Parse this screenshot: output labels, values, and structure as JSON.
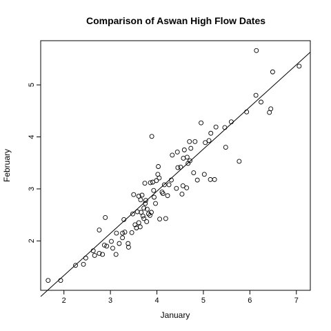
{
  "chart_data": {
    "type": "scatter",
    "title": "Comparison of Aswan High Flow Dates",
    "xlabel": "January",
    "ylabel": "February",
    "xlim": [
      1.5,
      7.3
    ],
    "ylim": [
      1.05,
      5.85
    ],
    "x_ticks": [
      2,
      3,
      4,
      5,
      6,
      7
    ],
    "y_ticks": [
      2,
      3,
      4,
      5
    ],
    "grid": false,
    "legend": "none",
    "fit_line": {
      "x": [
        1.5,
        7.3
      ],
      "y": [
        0.93,
        5.63
      ]
    },
    "points": [
      {
        "x": 1.66,
        "y": 1.24
      },
      {
        "x": 1.93,
        "y": 1.24
      },
      {
        "x": 2.25,
        "y": 1.53
      },
      {
        "x": 2.42,
        "y": 1.55
      },
      {
        "x": 2.47,
        "y": 1.67
      },
      {
        "x": 2.63,
        "y": 1.81
      },
      {
        "x": 2.66,
        "y": 1.72
      },
      {
        "x": 2.76,
        "y": 1.76
      },
      {
        "x": 2.76,
        "y": 2.21
      },
      {
        "x": 2.83,
        "y": 1.74
      },
      {
        "x": 2.87,
        "y": 1.92
      },
      {
        "x": 2.89,
        "y": 2.45
      },
      {
        "x": 2.92,
        "y": 1.9
      },
      {
        "x": 3.02,
        "y": 1.99
      },
      {
        "x": 3.05,
        "y": 1.86
      },
      {
        "x": 3.12,
        "y": 1.74
      },
      {
        "x": 3.13,
        "y": 2.15
      },
      {
        "x": 3.19,
        "y": 1.95
      },
      {
        "x": 3.26,
        "y": 2.06
      },
      {
        "x": 3.26,
        "y": 2.15
      },
      {
        "x": 3.29,
        "y": 2.41
      },
      {
        "x": 3.31,
        "y": 2.17
      },
      {
        "x": 3.38,
        "y": 1.95
      },
      {
        "x": 3.39,
        "y": 1.88
      },
      {
        "x": 3.46,
        "y": 2.16
      },
      {
        "x": 3.48,
        "y": 2.52
      },
      {
        "x": 3.5,
        "y": 2.89
      },
      {
        "x": 3.53,
        "y": 2.31
      },
      {
        "x": 3.56,
        "y": 2.25
      },
      {
        "x": 3.58,
        "y": 2.56
      },
      {
        "x": 3.61,
        "y": 2.35
      },
      {
        "x": 3.61,
        "y": 2.86
      },
      {
        "x": 3.64,
        "y": 2.27
      },
      {
        "x": 3.65,
        "y": 2.79
      },
      {
        "x": 3.66,
        "y": 2.55
      },
      {
        "x": 3.68,
        "y": 2.88
      },
      {
        "x": 3.7,
        "y": 2.48
      },
      {
        "x": 3.72,
        "y": 2.63
      },
      {
        "x": 3.72,
        "y": 2.43
      },
      {
        "x": 3.74,
        "y": 3.11
      },
      {
        "x": 3.75,
        "y": 2.72
      },
      {
        "x": 3.76,
        "y": 2.78
      },
      {
        "x": 3.78,
        "y": 2.37
      },
      {
        "x": 3.79,
        "y": 2.61
      },
      {
        "x": 3.82,
        "y": 2.52
      },
      {
        "x": 3.85,
        "y": 2.49
      },
      {
        "x": 3.86,
        "y": 3.12
      },
      {
        "x": 3.88,
        "y": 2.55
      },
      {
        "x": 3.89,
        "y": 4.01
      },
      {
        "x": 3.91,
        "y": 3.13
      },
      {
        "x": 3.93,
        "y": 2.97
      },
      {
        "x": 3.94,
        "y": 2.84
      },
      {
        "x": 3.97,
        "y": 2.72
      },
      {
        "x": 3.99,
        "y": 3.16
      },
      {
        "x": 4.02,
        "y": 3.28
      },
      {
        "x": 4.03,
        "y": 3.43
      },
      {
        "x": 4.05,
        "y": 3.21
      },
      {
        "x": 4.06,
        "y": 2.42
      },
      {
        "x": 4.11,
        "y": 2.94
      },
      {
        "x": 4.13,
        "y": 2.91
      },
      {
        "x": 4.16,
        "y": 3.08
      },
      {
        "x": 4.19,
        "y": 2.43
      },
      {
        "x": 4.23,
        "y": 2.87
      },
      {
        "x": 4.26,
        "y": 3.08
      },
      {
        "x": 4.31,
        "y": 3.17
      },
      {
        "x": 4.33,
        "y": 3.65
      },
      {
        "x": 4.42,
        "y": 3.01
      },
      {
        "x": 4.44,
        "y": 3.71
      },
      {
        "x": 4.45,
        "y": 3.41
      },
      {
        "x": 4.51,
        "y": 3.42
      },
      {
        "x": 4.54,
        "y": 2.9
      },
      {
        "x": 4.56,
        "y": 3.06
      },
      {
        "x": 4.57,
        "y": 3.59
      },
      {
        "x": 4.59,
        "y": 3.75
      },
      {
        "x": 4.64,
        "y": 3.02
      },
      {
        "x": 4.65,
        "y": 3.61
      },
      {
        "x": 4.67,
        "y": 3.49
      },
      {
        "x": 4.7,
        "y": 3.91
      },
      {
        "x": 4.71,
        "y": 3.54
      },
      {
        "x": 4.73,
        "y": 3.78
      },
      {
        "x": 4.79,
        "y": 3.31
      },
      {
        "x": 4.82,
        "y": 3.91
      },
      {
        "x": 4.87,
        "y": 3.17
      },
      {
        "x": 4.95,
        "y": 4.27
      },
      {
        "x": 5.02,
        "y": 3.28
      },
      {
        "x": 5.04,
        "y": 3.89
      },
      {
        "x": 5.12,
        "y": 3.93
      },
      {
        "x": 5.15,
        "y": 3.18
      },
      {
        "x": 5.16,
        "y": 4.07
      },
      {
        "x": 5.24,
        "y": 3.18
      },
      {
        "x": 5.27,
        "y": 4.19
      },
      {
        "x": 5.46,
        "y": 4.18
      },
      {
        "x": 5.48,
        "y": 3.8
      },
      {
        "x": 5.6,
        "y": 4.29
      },
      {
        "x": 5.77,
        "y": 3.53
      },
      {
        "x": 5.93,
        "y": 4.48
      },
      {
        "x": 6.13,
        "y": 4.8
      },
      {
        "x": 6.14,
        "y": 5.66
      },
      {
        "x": 6.24,
        "y": 4.67
      },
      {
        "x": 6.42,
        "y": 4.47
      },
      {
        "x": 6.45,
        "y": 4.54
      },
      {
        "x": 6.49,
        "y": 5.25
      },
      {
        "x": 7.06,
        "y": 5.36
      }
    ]
  }
}
